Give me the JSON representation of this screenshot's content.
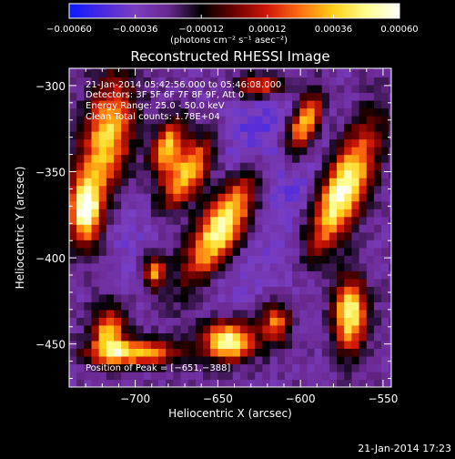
{
  "chart_data": {
    "type": "heatmap",
    "title": "Reconstructed RHESSI Image",
    "xlabel": "Heliocentric X (arcsec)",
    "ylabel": "Heliocentric Y (arcsec)",
    "xlim": [
      -740,
      -545
    ],
    "ylim": [
      -475,
      -290
    ],
    "x_ticks": [
      {
        "value": -700,
        "label": "−700"
      },
      {
        "value": -650,
        "label": "−650"
      },
      {
        "value": -600,
        "label": "−600"
      },
      {
        "value": -550,
        "label": "−550"
      }
    ],
    "y_ticks": [
      {
        "value": -300,
        "label": "−300"
      },
      {
        "value": -350,
        "label": "−350"
      },
      {
        "value": -400,
        "label": "−400"
      },
      {
        "value": -450,
        "label": "−450"
      }
    ],
    "colorbar": {
      "range": [
        -0.0006,
        0.0006
      ],
      "units": "(photons cm⁻² s⁻¹ asec⁻²)",
      "ticks": [
        {
          "value": -0.0006,
          "label": "−0.00060"
        },
        {
          "value": -0.00036,
          "label": "−0.00036"
        },
        {
          "value": -0.00012,
          "label": "−0.00012"
        },
        {
          "value": 0.00012,
          "label": "0.00012"
        },
        {
          "value": 0.00036,
          "label": "0.00036"
        },
        {
          "value": 0.0006,
          "label": "0.00060"
        }
      ],
      "colors": [
        "#0a1cff",
        "#4a2ae0",
        "#7a3ec0",
        "#6a2890",
        "#000000",
        "#6a0000",
        "#d01808",
        "#ff7010",
        "#ffd018",
        "#ffff90",
        "#ffffff"
      ]
    },
    "blobs": [
      {
        "x": -648,
        "y": -382,
        "sx": 9,
        "sy": 26,
        "angle": 32,
        "value": 0.00058
      },
      {
        "x": -668,
        "y": -350,
        "sx": 7,
        "sy": 16,
        "angle": 32,
        "value": 0.0004
      },
      {
        "x": -680,
        "y": -335,
        "sx": 6,
        "sy": 12,
        "angle": 20,
        "value": 0.00035
      },
      {
        "x": -717,
        "y": -330,
        "sx": 10,
        "sy": 24,
        "angle": 10,
        "value": 0.0004
      },
      {
        "x": -730,
        "y": -372,
        "sx": 7,
        "sy": 14,
        "angle": 0,
        "value": 0.00056
      },
      {
        "x": -575,
        "y": -362,
        "sx": 9,
        "sy": 28,
        "angle": 24,
        "value": 0.00058
      },
      {
        "x": -598,
        "y": -322,
        "sx": 6,
        "sy": 14,
        "angle": 22,
        "value": 0.00044
      },
      {
        "x": -643,
        "y": -448,
        "sx": 11,
        "sy": 8,
        "angle": 0,
        "value": 0.00052
      },
      {
        "x": -570,
        "y": -432,
        "sx": 7,
        "sy": 15,
        "angle": 0,
        "value": 0.00052
      },
      {
        "x": -716,
        "y": -443,
        "sx": 7,
        "sy": 10,
        "angle": 0,
        "value": 0.00036
      },
      {
        "x": -700,
        "y": -455,
        "sx": 20,
        "sy": 5,
        "angle": 0,
        "value": 0.00036
      },
      {
        "x": -688,
        "y": -408,
        "sx": 5,
        "sy": 7,
        "angle": 0,
        "value": 0.00032
      },
      {
        "x": -625,
        "y": -300,
        "sx": 11,
        "sy": 5,
        "angle": 0,
        "value": 0.00024
      },
      {
        "x": -615,
        "y": -437,
        "sx": 6,
        "sy": 8,
        "angle": 0,
        "value": 0.00024
      },
      {
        "x": -620,
        "y": -340,
        "sx": 22,
        "sy": 30,
        "angle": 0,
        "value": -0.00048
      },
      {
        "x": -655,
        "y": -410,
        "sx": 26,
        "sy": 16,
        "angle": 0,
        "value": -0.00036
      },
      {
        "x": -593,
        "y": -405,
        "sx": 16,
        "sy": 22,
        "angle": 0,
        "value": -0.00036
      },
      {
        "x": -706,
        "y": -385,
        "sx": 14,
        "sy": 16,
        "angle": 0,
        "value": -0.00036
      },
      {
        "x": -562,
        "y": -305,
        "sx": 9,
        "sy": 9,
        "angle": 0,
        "value": -0.00028
      }
    ],
    "background_value": -0.00027,
    "peak": {
      "x": -651,
      "y": -388
    }
  },
  "annotations": {
    "time_range": "21-Jan-2014 05:42:56.000 to 05:46:08.000",
    "detectors": "Detectors: 3F 5F 6F 7F 8F 9F, Att 0",
    "energy": "Energy Range: 25.0 - 50.0 keV",
    "clean": "Clean    Total counts: 1.78E+04",
    "peak_label": "Position of Peak = [−651,−388]"
  },
  "footer_timestamp": "21-Jan-2014 17:23"
}
